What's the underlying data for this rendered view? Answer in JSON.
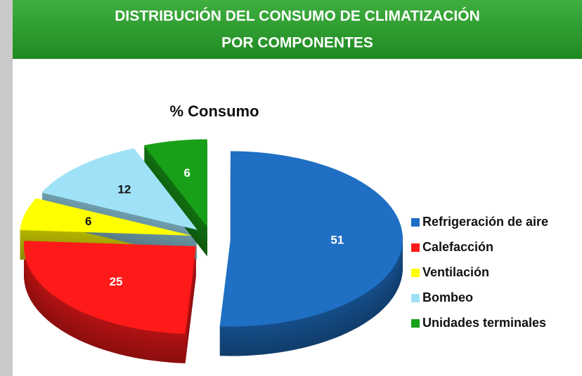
{
  "header": {
    "title_lines": [
      "DISTRIBUCIÓN DEL CONSUMO DE CLIMATIZACIÓN",
      "POR COMPONENTES"
    ]
  },
  "chart_data": {
    "type": "pie",
    "title": "% Consumo",
    "categories": [
      "Refrigeración de aire",
      "Calefacción",
      "Ventilación",
      "Bombeo",
      "Unidades terminales"
    ],
    "values": [
      51,
      25,
      6,
      12,
      6
    ],
    "colors": [
      "#1f6fc4",
      "#ff1a1a",
      "#ffff00",
      "#9fe2f7",
      "#18a018"
    ],
    "legend": "right"
  }
}
